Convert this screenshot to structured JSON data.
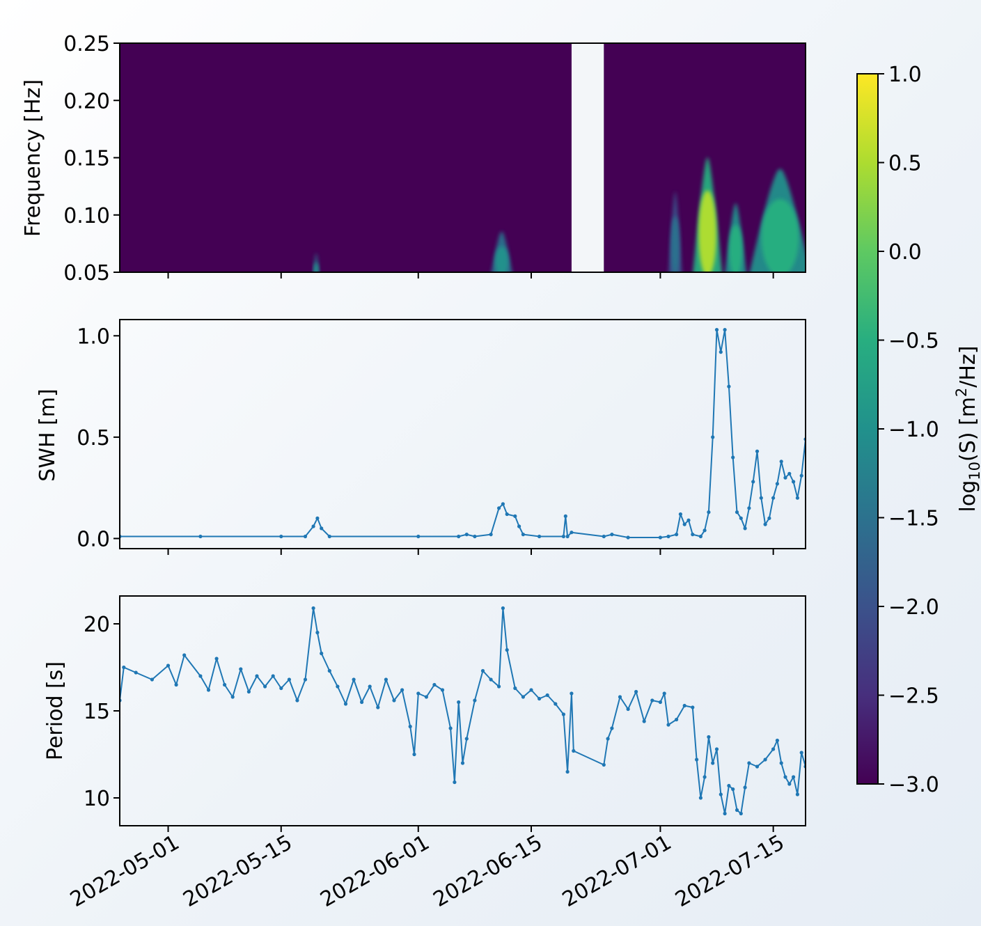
{
  "chart_data": [
    {
      "type": "heatmap",
      "panel": "spectrogram",
      "title": "",
      "xlabel": "",
      "ylabel": "Frequency [Hz]",
      "ylim": [
        0.05,
        0.25
      ],
      "yticks": [
        "0.05",
        "0.10",
        "0.15",
        "0.20",
        "0.25"
      ],
      "xlim": [
        "2022-04-25",
        "2022-07-19"
      ],
      "colorbar": {
        "label_base": "log",
        "label_sub": "10",
        "label_mid": "(S) [m",
        "label_sup": "2",
        "label_end": "/Hz]",
        "range": [
          -3.0,
          1.0
        ],
        "ticks": [
          "1.0",
          "0.5",
          "0.0",
          "−0.5",
          "−1.0",
          "−1.5",
          "−2.0",
          "−2.5",
          "−3.0"
        ],
        "colormap": "viridis"
      },
      "missing_data_gap": [
        "2022-06-20",
        "2022-06-24"
      ],
      "energy_blobs": [
        {
          "t_start": "2022-05-19",
          "t_end": "2022-05-19",
          "f_low": 0.05,
          "f_high": 0.066,
          "level": -1.1
        },
        {
          "t_start": "2022-06-10",
          "t_end": "2022-06-12",
          "f_low": 0.05,
          "f_high": 0.085,
          "level": -0.9
        },
        {
          "t_start": "2022-07-02",
          "t_end": "2022-07-03",
          "f_low": 0.05,
          "f_high": 0.12,
          "level": -1.3
        },
        {
          "t_start": "2022-07-05",
          "t_end": "2022-07-08",
          "f_low": 0.05,
          "f_high": 0.15,
          "level": 0.3
        },
        {
          "t_start": "2022-07-09",
          "t_end": "2022-07-11",
          "f_low": 0.05,
          "f_high": 0.11,
          "level": -0.6
        },
        {
          "t_start": "2022-07-12",
          "t_end": "2022-07-19",
          "f_low": 0.05,
          "f_high": 0.14,
          "level": -0.5
        }
      ]
    },
    {
      "type": "line",
      "panel": "swh",
      "title": "",
      "xlabel": "",
      "ylabel": "SWH [m]",
      "ylim": [
        -0.05,
        1.08
      ],
      "yticks": [
        "0.0",
        "0.5",
        "1.0"
      ],
      "xlim": [
        "2022-04-25",
        "2022-07-19"
      ],
      "series": [
        {
          "color": "#1f77b4",
          "points": [
            [
              "2022-04-25",
              0.01
            ],
            [
              "2022-05-05",
              0.01
            ],
            [
              "2022-05-15",
              0.01
            ],
            [
              "2022-05-18",
              0.01
            ],
            [
              "2022-05-19",
              0.06
            ],
            [
              "2022-05-19T12",
              0.1
            ],
            [
              "2022-05-20",
              0.05
            ],
            [
              "2022-05-21",
              0.01
            ],
            [
              "2022-06-01",
              0.01
            ],
            [
              "2022-06-06",
              0.01
            ],
            [
              "2022-06-07",
              0.02
            ],
            [
              "2022-06-08",
              0.01
            ],
            [
              "2022-06-10",
              0.02
            ],
            [
              "2022-06-11",
              0.15
            ],
            [
              "2022-06-11T12",
              0.17
            ],
            [
              "2022-06-12",
              0.12
            ],
            [
              "2022-06-13",
              0.11
            ],
            [
              "2022-06-13T12",
              0.06
            ],
            [
              "2022-06-14",
              0.02
            ],
            [
              "2022-06-16",
              0.01
            ],
            [
              "2022-06-19",
              0.01
            ],
            [
              "2022-06-19T06",
              0.11
            ],
            [
              "2022-06-19T12",
              0.01
            ],
            [
              "2022-06-20",
              0.03
            ],
            [
              "2022-06-24",
              0.01
            ],
            [
              "2022-06-25",
              0.02
            ],
            [
              "2022-06-27",
              0.005
            ],
            [
              "2022-07-01",
              0.005
            ],
            [
              "2022-07-02",
              0.01
            ],
            [
              "2022-07-03",
              0.02
            ],
            [
              "2022-07-03T12",
              0.12
            ],
            [
              "2022-07-04",
              0.07
            ],
            [
              "2022-07-04T12",
              0.09
            ],
            [
              "2022-07-05",
              0.02
            ],
            [
              "2022-07-06",
              0.01
            ],
            [
              "2022-07-06T12",
              0.04
            ],
            [
              "2022-07-07",
              0.13
            ],
            [
              "2022-07-07T12",
              0.5
            ],
            [
              "2022-07-08",
              1.03
            ],
            [
              "2022-07-08T12",
              0.92
            ],
            [
              "2022-07-09",
              1.03
            ],
            [
              "2022-07-09T12",
              0.75
            ],
            [
              "2022-07-10",
              0.4
            ],
            [
              "2022-07-10T12",
              0.13
            ],
            [
              "2022-07-11",
              0.1
            ],
            [
              "2022-07-11T12",
              0.05
            ],
            [
              "2022-07-12",
              0.15
            ],
            [
              "2022-07-12T12",
              0.28
            ],
            [
              "2022-07-13",
              0.43
            ],
            [
              "2022-07-13T12",
              0.2
            ],
            [
              "2022-07-14",
              0.07
            ],
            [
              "2022-07-14T12",
              0.1
            ],
            [
              "2022-07-15",
              0.2
            ],
            [
              "2022-07-15T12",
              0.27
            ],
            [
              "2022-07-16",
              0.38
            ],
            [
              "2022-07-16T12",
              0.3
            ],
            [
              "2022-07-17",
              0.32
            ],
            [
              "2022-07-17T12",
              0.28
            ],
            [
              "2022-07-18",
              0.2
            ],
            [
              "2022-07-18T12",
              0.31
            ],
            [
              "2022-07-19",
              0.49
            ]
          ]
        }
      ]
    },
    {
      "type": "line",
      "panel": "period",
      "title": "",
      "xlabel": "",
      "ylabel": "Period [s]",
      "ylim": [
        8.4,
        21.6
      ],
      "yticks": [
        "10",
        "15",
        "20"
      ],
      "xlim": [
        "2022-04-25",
        "2022-07-19"
      ],
      "xticks": [
        "2022-05-01",
        "2022-05-15",
        "2022-06-01",
        "2022-06-15",
        "2022-07-01",
        "2022-07-15"
      ],
      "series": [
        {
          "color": "#1f77b4",
          "points": [
            [
              "2022-04-25",
              15.6
            ],
            [
              "2022-04-25T12",
              17.5
            ],
            [
              "2022-04-27",
              17.2
            ],
            [
              "2022-04-29",
              16.8
            ],
            [
              "2022-05-01",
              17.6
            ],
            [
              "2022-05-02",
              16.5
            ],
            [
              "2022-05-03",
              18.2
            ],
            [
              "2022-05-05",
              17.0
            ],
            [
              "2022-05-06",
              16.2
            ],
            [
              "2022-05-07",
              18.0
            ],
            [
              "2022-05-08",
              16.5
            ],
            [
              "2022-05-09",
              15.8
            ],
            [
              "2022-05-10",
              17.4
            ],
            [
              "2022-05-11",
              16.1
            ],
            [
              "2022-05-12",
              17.0
            ],
            [
              "2022-05-13",
              16.4
            ],
            [
              "2022-05-14",
              17.0
            ],
            [
              "2022-05-15",
              16.3
            ],
            [
              "2022-05-16",
              16.8
            ],
            [
              "2022-05-17",
              15.6
            ],
            [
              "2022-05-18",
              16.8
            ],
            [
              "2022-05-19",
              20.9
            ],
            [
              "2022-05-19T12",
              19.5
            ],
            [
              "2022-05-20",
              18.3
            ],
            [
              "2022-05-21",
              17.3
            ],
            [
              "2022-05-22",
              16.4
            ],
            [
              "2022-05-23",
              15.4
            ],
            [
              "2022-05-24",
              16.8
            ],
            [
              "2022-05-25",
              15.5
            ],
            [
              "2022-05-26",
              16.4
            ],
            [
              "2022-05-27",
              15.2
            ],
            [
              "2022-05-28",
              16.8
            ],
            [
              "2022-05-29",
              15.6
            ],
            [
              "2022-05-30",
              16.2
            ],
            [
              "2022-05-31",
              14.1
            ],
            [
              "2022-05-31T12",
              12.5
            ],
            [
              "2022-06-01",
              16.0
            ],
            [
              "2022-06-02",
              15.8
            ],
            [
              "2022-06-03",
              16.5
            ],
            [
              "2022-06-04",
              16.2
            ],
            [
              "2022-06-05",
              14.0
            ],
            [
              "2022-06-05T12",
              10.9
            ],
            [
              "2022-06-06",
              15.5
            ],
            [
              "2022-06-06T12",
              12.0
            ],
            [
              "2022-06-07",
              13.4
            ],
            [
              "2022-06-08",
              15.6
            ],
            [
              "2022-06-09",
              17.3
            ],
            [
              "2022-06-10",
              16.8
            ],
            [
              "2022-06-11",
              16.4
            ],
            [
              "2022-06-11T12",
              20.9
            ],
            [
              "2022-06-12",
              18.5
            ],
            [
              "2022-06-13",
              16.3
            ],
            [
              "2022-06-14",
              15.8
            ],
            [
              "2022-06-15",
              16.2
            ],
            [
              "2022-06-16",
              15.7
            ],
            [
              "2022-06-17",
              15.9
            ],
            [
              "2022-06-18",
              15.4
            ],
            [
              "2022-06-19",
              14.8
            ],
            [
              "2022-06-19T12",
              11.5
            ],
            [
              "2022-06-20",
              16.0
            ],
            [
              "2022-06-20T06",
              12.7
            ],
            [
              "2022-06-24",
              11.9
            ],
            [
              "2022-06-24T12",
              13.4
            ],
            [
              "2022-06-25",
              14.0
            ],
            [
              "2022-06-26",
              15.8
            ],
            [
              "2022-06-27",
              15.1
            ],
            [
              "2022-06-28",
              16.1
            ],
            [
              "2022-06-29",
              14.4
            ],
            [
              "2022-06-30",
              15.6
            ],
            [
              "2022-07-01",
              15.5
            ],
            [
              "2022-07-01T12",
              16.0
            ],
            [
              "2022-07-02",
              14.2
            ],
            [
              "2022-07-03",
              14.5
            ],
            [
              "2022-07-04",
              15.3
            ],
            [
              "2022-07-05",
              15.2
            ],
            [
              "2022-07-05T12",
              12.2
            ],
            [
              "2022-07-06",
              10.0
            ],
            [
              "2022-07-06T12",
              11.2
            ],
            [
              "2022-07-07",
              13.5
            ],
            [
              "2022-07-07T12",
              12.0
            ],
            [
              "2022-07-08",
              12.8
            ],
            [
              "2022-07-08T12",
              10.2
            ],
            [
              "2022-07-09",
              9.1
            ],
            [
              "2022-07-09T12",
              10.7
            ],
            [
              "2022-07-10",
              10.5
            ],
            [
              "2022-07-10T12",
              9.3
            ],
            [
              "2022-07-11",
              9.1
            ],
            [
              "2022-07-11T12",
              10.6
            ],
            [
              "2022-07-12",
              12.0
            ],
            [
              "2022-07-13",
              11.8
            ],
            [
              "2022-07-14",
              12.2
            ],
            [
              "2022-07-15",
              12.8
            ],
            [
              "2022-07-15T12",
              13.3
            ],
            [
              "2022-07-16",
              12.0
            ],
            [
              "2022-07-16T12",
              11.2
            ],
            [
              "2022-07-17",
              10.8
            ],
            [
              "2022-07-17T12",
              11.2
            ],
            [
              "2022-07-18",
              10.2
            ],
            [
              "2022-07-18T12",
              12.6
            ],
            [
              "2022-07-19",
              11.8
            ]
          ]
        }
      ]
    }
  ]
}
